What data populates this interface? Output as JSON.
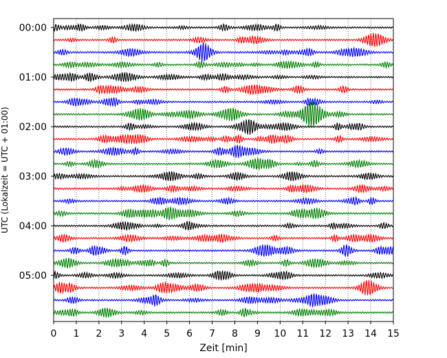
{
  "chart_data": {
    "type": "line",
    "title": "",
    "xlabel": "Zeit  [min]",
    "ylabel": "UTC (Lokalzeit = UTC + 01:00)",
    "xlim": [
      0,
      15
    ],
    "x_ticks": [
      "0",
      "1",
      "2",
      "3",
      "4",
      "5",
      "6",
      "7",
      "8",
      "9",
      "10",
      "11",
      "12",
      "13",
      "14",
      "15"
    ],
    "y_ticks": [
      "00:00",
      "01:00",
      "02:00",
      "03:00",
      "04:00",
      "05:00"
    ],
    "trace_interval_min": 15,
    "trace_count": 24,
    "trace_colors": [
      "#000000",
      "#ff0000",
      "#0000ff",
      "#008000"
    ],
    "grid": "vertical dotted at each minute",
    "legend": "none"
  }
}
